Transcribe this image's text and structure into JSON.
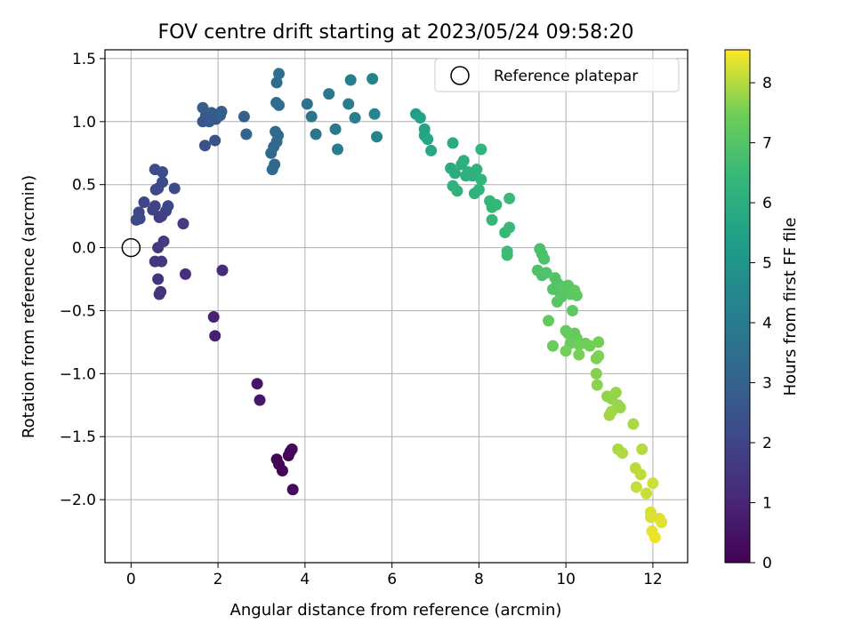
{
  "chart_data": {
    "type": "scatter",
    "title": "FOV centre drift starting at 2023/05/24 09:58:20",
    "xlabel": "Angular distance from reference (arcmin)",
    "ylabel": "Rotation from reference (arcmin)",
    "colorbar_label": "Hours from first FF file",
    "xlim": [
      -0.6,
      12.8
    ],
    "ylim": [
      -2.5,
      1.57
    ],
    "clim": [
      0,
      8.55
    ],
    "xticks": [
      0,
      2,
      4,
      6,
      8,
      10,
      12
    ],
    "xtick_labels": [
      "0",
      "2",
      "4",
      "6",
      "8",
      "10",
      "12"
    ],
    "yticks": [
      -2.0,
      -1.5,
      -1.0,
      -0.5,
      0.0,
      0.5,
      1.0,
      1.5
    ],
    "ytick_labels": [
      "−2.0",
      "−1.5",
      "−1.0",
      "−0.5",
      "0.0",
      "0.5",
      "1.0",
      "1.5"
    ],
    "cticks": [
      0,
      1,
      2,
      3,
      4,
      5,
      6,
      7,
      8
    ],
    "ctick_labels": [
      "0",
      "1",
      "2",
      "3",
      "4",
      "5",
      "6",
      "7",
      "8"
    ],
    "grid": true,
    "colormap": "viridis",
    "legend": {
      "label": "Reference platepar",
      "placement": "top-right"
    },
    "reference_point": {
      "x": 0.0,
      "y": 0.0
    },
    "points": [
      {
        "x": 3.35,
        "y": -1.68,
        "t": 0.05
      },
      {
        "x": 3.4,
        "y": -1.72,
        "t": 0.08
      },
      {
        "x": 3.48,
        "y": -1.77,
        "t": 0.12
      },
      {
        "x": 3.62,
        "y": -1.65,
        "t": 0.15
      },
      {
        "x": 3.66,
        "y": -1.62,
        "t": 0.18
      },
      {
        "x": 3.7,
        "y": -1.6,
        "t": 0.2
      },
      {
        "x": 3.72,
        "y": -1.92,
        "t": 0.25
      },
      {
        "x": 2.9,
        "y": -1.08,
        "t": 0.55
      },
      {
        "x": 2.96,
        "y": -1.21,
        "t": 0.6
      },
      {
        "x": 1.93,
        "y": -0.7,
        "t": 0.85
      },
      {
        "x": 1.9,
        "y": -0.55,
        "t": 0.9
      },
      {
        "x": 2.1,
        "y": -0.18,
        "t": 1.15
      },
      {
        "x": 1.25,
        "y": -0.21,
        "t": 1.3
      },
      {
        "x": 0.68,
        "y": -0.35,
        "t": 1.35
      },
      {
        "x": 0.65,
        "y": -0.37,
        "t": 1.4
      },
      {
        "x": 0.62,
        "y": -0.25,
        "t": 1.45
      },
      {
        "x": 0.55,
        "y": -0.11,
        "t": 1.5
      },
      {
        "x": 0.7,
        "y": -0.11,
        "t": 1.55
      },
      {
        "x": 0.62,
        "y": 0.0,
        "t": 1.6
      },
      {
        "x": 0.75,
        "y": 0.05,
        "t": 1.65
      },
      {
        "x": 1.2,
        "y": 0.19,
        "t": 1.7
      },
      {
        "x": 0.65,
        "y": 0.24,
        "t": 1.75
      },
      {
        "x": 0.7,
        "y": 0.25,
        "t": 1.8
      },
      {
        "x": 0.8,
        "y": 0.29,
        "t": 1.85
      },
      {
        "x": 0.5,
        "y": 0.3,
        "t": 1.9
      },
      {
        "x": 0.55,
        "y": 0.33,
        "t": 1.95
      },
      {
        "x": 0.85,
        "y": 0.33,
        "t": 2.0
      },
      {
        "x": 0.3,
        "y": 0.36,
        "t": 2.02
      },
      {
        "x": 0.18,
        "y": 0.28,
        "t": 2.05
      },
      {
        "x": 0.12,
        "y": 0.22,
        "t": 2.08
      },
      {
        "x": 0.2,
        "y": 0.23,
        "t": 2.1
      },
      {
        "x": 0.57,
        "y": 0.46,
        "t": 2.12
      },
      {
        "x": 0.62,
        "y": 0.47,
        "t": 2.15
      },
      {
        "x": 0.72,
        "y": 0.52,
        "t": 2.18
      },
      {
        "x": 1.0,
        "y": 0.47,
        "t": 2.2
      },
      {
        "x": 0.55,
        "y": 0.62,
        "t": 2.22
      },
      {
        "x": 0.72,
        "y": 0.6,
        "t": 2.25
      },
      {
        "x": 1.7,
        "y": 0.81,
        "t": 2.4
      },
      {
        "x": 1.93,
        "y": 0.85,
        "t": 2.5
      },
      {
        "x": 1.65,
        "y": 1.0,
        "t": 2.55
      },
      {
        "x": 1.8,
        "y": 1.0,
        "t": 2.6
      },
      {
        "x": 1.95,
        "y": 1.02,
        "t": 2.65
      },
      {
        "x": 1.72,
        "y": 1.05,
        "t": 2.7
      },
      {
        "x": 1.85,
        "y": 1.07,
        "t": 2.75
      },
      {
        "x": 2.05,
        "y": 1.05,
        "t": 2.8
      },
      {
        "x": 1.65,
        "y": 1.11,
        "t": 2.82
      },
      {
        "x": 2.08,
        "y": 1.08,
        "t": 2.85
      },
      {
        "x": 2.6,
        "y": 1.04,
        "t": 3.0
      },
      {
        "x": 2.65,
        "y": 0.9,
        "t": 3.05
      },
      {
        "x": 3.25,
        "y": 0.62,
        "t": 3.2
      },
      {
        "x": 3.3,
        "y": 0.66,
        "t": 3.22
      },
      {
        "x": 3.22,
        "y": 0.75,
        "t": 3.25
      },
      {
        "x": 3.28,
        "y": 0.8,
        "t": 3.28
      },
      {
        "x": 3.35,
        "y": 0.84,
        "t": 3.3
      },
      {
        "x": 3.32,
        "y": 0.92,
        "t": 3.33
      },
      {
        "x": 3.38,
        "y": 0.89,
        "t": 3.35
      },
      {
        "x": 3.34,
        "y": 1.15,
        "t": 3.38
      },
      {
        "x": 3.4,
        "y": 1.13,
        "t": 3.4
      },
      {
        "x": 3.35,
        "y": 1.31,
        "t": 3.42
      },
      {
        "x": 3.4,
        "y": 1.38,
        "t": 3.45
      },
      {
        "x": 4.05,
        "y": 1.14,
        "t": 3.7
      },
      {
        "x": 4.15,
        "y": 1.04,
        "t": 3.75
      },
      {
        "x": 4.25,
        "y": 0.9,
        "t": 3.8
      },
      {
        "x": 4.55,
        "y": 1.22,
        "t": 3.9
      },
      {
        "x": 4.7,
        "y": 0.94,
        "t": 3.95
      },
      {
        "x": 4.75,
        "y": 0.78,
        "t": 4.0
      },
      {
        "x": 5.0,
        "y": 1.14,
        "t": 4.1
      },
      {
        "x": 5.05,
        "y": 1.33,
        "t": 4.15
      },
      {
        "x": 5.15,
        "y": 1.03,
        "t": 4.2
      },
      {
        "x": 5.55,
        "y": 1.34,
        "t": 4.3
      },
      {
        "x": 5.6,
        "y": 1.06,
        "t": 4.35
      },
      {
        "x": 5.65,
        "y": 0.88,
        "t": 4.4
      },
      {
        "x": 6.55,
        "y": 1.06,
        "t": 5.4
      },
      {
        "x": 6.65,
        "y": 1.03,
        "t": 5.5
      },
      {
        "x": 6.75,
        "y": 0.94,
        "t": 5.6
      },
      {
        "x": 6.75,
        "y": 0.89,
        "t": 5.65
      },
      {
        "x": 6.82,
        "y": 0.86,
        "t": 5.7
      },
      {
        "x": 6.9,
        "y": 0.77,
        "t": 5.75
      },
      {
        "x": 7.4,
        "y": 0.83,
        "t": 5.9
      },
      {
        "x": 7.35,
        "y": 0.63,
        "t": 5.95
      },
      {
        "x": 7.45,
        "y": 0.59,
        "t": 6.0
      },
      {
        "x": 7.6,
        "y": 0.66,
        "t": 6.02
      },
      {
        "x": 7.65,
        "y": 0.69,
        "t": 6.05
      },
      {
        "x": 7.7,
        "y": 0.57,
        "t": 6.08
      },
      {
        "x": 7.75,
        "y": 0.6,
        "t": 6.1
      },
      {
        "x": 7.85,
        "y": 0.57,
        "t": 6.12
      },
      {
        "x": 7.95,
        "y": 0.62,
        "t": 6.15
      },
      {
        "x": 7.4,
        "y": 0.49,
        "t": 6.18
      },
      {
        "x": 7.5,
        "y": 0.45,
        "t": 6.2
      },
      {
        "x": 7.9,
        "y": 0.43,
        "t": 6.22
      },
      {
        "x": 8.0,
        "y": 0.46,
        "t": 6.25
      },
      {
        "x": 8.05,
        "y": 0.54,
        "t": 6.28
      },
      {
        "x": 8.05,
        "y": 0.78,
        "t": 6.3
      },
      {
        "x": 8.25,
        "y": 0.37,
        "t": 6.35
      },
      {
        "x": 8.3,
        "y": 0.32,
        "t": 6.38
      },
      {
        "x": 8.4,
        "y": 0.34,
        "t": 6.4
      },
      {
        "x": 8.3,
        "y": 0.22,
        "t": 6.42
      },
      {
        "x": 8.6,
        "y": 0.12,
        "t": 6.45
      },
      {
        "x": 8.7,
        "y": 0.16,
        "t": 6.48
      },
      {
        "x": 8.7,
        "y": 0.39,
        "t": 6.5
      },
      {
        "x": 8.65,
        "y": -0.03,
        "t": 6.55
      },
      {
        "x": 8.65,
        "y": -0.06,
        "t": 6.58
      },
      {
        "x": 9.4,
        "y": -0.01,
        "t": 6.8
      },
      {
        "x": 9.45,
        "y": -0.05,
        "t": 6.82
      },
      {
        "x": 9.5,
        "y": -0.09,
        "t": 6.85
      },
      {
        "x": 9.35,
        "y": -0.18,
        "t": 6.88
      },
      {
        "x": 9.45,
        "y": -0.22,
        "t": 6.9
      },
      {
        "x": 9.55,
        "y": -0.2,
        "t": 6.92
      },
      {
        "x": 9.75,
        "y": -0.24,
        "t": 6.95
      },
      {
        "x": 9.8,
        "y": -0.28,
        "t": 6.97
      },
      {
        "x": 9.7,
        "y": -0.33,
        "t": 7.0
      },
      {
        "x": 9.85,
        "y": -0.35,
        "t": 7.02
      },
      {
        "x": 9.9,
        "y": -0.39,
        "t": 7.05
      },
      {
        "x": 9.8,
        "y": -0.43,
        "t": 7.08
      },
      {
        "x": 9.95,
        "y": -0.31,
        "t": 7.1
      },
      {
        "x": 10.05,
        "y": -0.3,
        "t": 7.12
      },
      {
        "x": 10.1,
        "y": -0.37,
        "t": 7.15
      },
      {
        "x": 10.2,
        "y": -0.34,
        "t": 7.18
      },
      {
        "x": 10.25,
        "y": -0.38,
        "t": 7.2
      },
      {
        "x": 10.15,
        "y": -0.5,
        "t": 7.22
      },
      {
        "x": 9.6,
        "y": -0.58,
        "t": 7.25
      },
      {
        "x": 10.0,
        "y": -0.66,
        "t": 7.28
      },
      {
        "x": 10.05,
        "y": -0.68,
        "t": 7.3
      },
      {
        "x": 10.2,
        "y": -0.68,
        "t": 7.32
      },
      {
        "x": 10.25,
        "y": -0.72,
        "t": 7.35
      },
      {
        "x": 9.7,
        "y": -0.78,
        "t": 7.38
      },
      {
        "x": 10.1,
        "y": -0.76,
        "t": 7.4
      },
      {
        "x": 10.3,
        "y": -0.77,
        "t": 7.42
      },
      {
        "x": 10.45,
        "y": -0.76,
        "t": 7.45
      },
      {
        "x": 10.55,
        "y": -0.78,
        "t": 7.48
      },
      {
        "x": 10.75,
        "y": -0.75,
        "t": 7.5
      },
      {
        "x": 10.0,
        "y": -0.82,
        "t": 7.52
      },
      {
        "x": 10.3,
        "y": -0.85,
        "t": 7.55
      },
      {
        "x": 10.7,
        "y": -0.88,
        "t": 7.58
      },
      {
        "x": 10.75,
        "y": -0.86,
        "t": 7.6
      },
      {
        "x": 10.7,
        "y": -1.0,
        "t": 7.65
      },
      {
        "x": 10.72,
        "y": -1.09,
        "t": 7.68
      },
      {
        "x": 10.95,
        "y": -1.18,
        "t": 7.72
      },
      {
        "x": 11.05,
        "y": -1.2,
        "t": 7.75
      },
      {
        "x": 11.15,
        "y": -1.15,
        "t": 7.78
      },
      {
        "x": 11.2,
        "y": -1.25,
        "t": 7.8
      },
      {
        "x": 11.25,
        "y": -1.27,
        "t": 7.82
      },
      {
        "x": 11.05,
        "y": -1.3,
        "t": 7.85
      },
      {
        "x": 11.0,
        "y": -1.33,
        "t": 7.88
      },
      {
        "x": 11.55,
        "y": -1.4,
        "t": 7.92
      },
      {
        "x": 11.2,
        "y": -1.6,
        "t": 7.95
      },
      {
        "x": 11.3,
        "y": -1.63,
        "t": 7.98
      },
      {
        "x": 11.75,
        "y": -1.6,
        "t": 8.0
      },
      {
        "x": 11.6,
        "y": -1.75,
        "t": 8.05
      },
      {
        "x": 11.72,
        "y": -1.8,
        "t": 8.08
      },
      {
        "x": 11.62,
        "y": -1.9,
        "t": 8.12
      },
      {
        "x": 11.85,
        "y": -1.95,
        "t": 8.15
      },
      {
        "x": 12.0,
        "y": -1.87,
        "t": 8.2
      },
      {
        "x": 11.95,
        "y": -2.1,
        "t": 8.25
      },
      {
        "x": 11.95,
        "y": -2.14,
        "t": 8.28
      },
      {
        "x": 12.15,
        "y": -2.15,
        "t": 8.3
      },
      {
        "x": 12.2,
        "y": -2.18,
        "t": 8.33
      },
      {
        "x": 11.98,
        "y": -2.25,
        "t": 8.38
      },
      {
        "x": 12.05,
        "y": -2.3,
        "t": 8.42
      }
    ]
  }
}
